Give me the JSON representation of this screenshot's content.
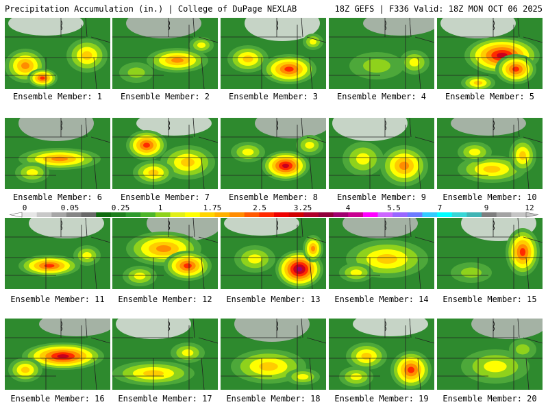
{
  "header": {
    "left": "Precipitation Accumulation (in.) | College of DuPage NEXLAB",
    "right": "18Z GEFS | F336 Valid: 18Z MON OCT 06 2025"
  },
  "caption_prefix": "Ensemble Member: ",
  "members": [
    {
      "label": "Ensemble Member: 1",
      "number": 1
    },
    {
      "label": "Ensemble Member: 2",
      "number": 2
    },
    {
      "label": "Ensemble Member: 3",
      "number": 3
    },
    {
      "label": "Ensemble Member: 4",
      "number": 4
    },
    {
      "label": "Ensemble Member: 5",
      "number": 5
    },
    {
      "label": "Ensemble Member: 6",
      "number": 6
    },
    {
      "label": "Ensemble Member: 7",
      "number": 7
    },
    {
      "label": "Ensemble Member: 8",
      "number": 8
    },
    {
      "label": "Ensemble Member: 9",
      "number": 9
    },
    {
      "label": "Ensemble Member: 10",
      "number": 10
    },
    {
      "label": "Ensemble Member: 11",
      "number": 11
    },
    {
      "label": "Ensemble Member: 12",
      "number": 12
    },
    {
      "label": "Ensemble Member: 13",
      "number": 13
    },
    {
      "label": "Ensemble Member: 14",
      "number": 14
    },
    {
      "label": "Ensemble Member: 15",
      "number": 15
    },
    {
      "label": "Ensemble Member: 16",
      "number": 16
    },
    {
      "label": "Ensemble Member: 17",
      "number": 17
    },
    {
      "label": "Ensemble Member: 18",
      "number": 18
    },
    {
      "label": "Ensemble Member: 19",
      "number": 19
    },
    {
      "label": "Ensemble Member: 20",
      "number": 20
    }
  ],
  "colorbar": {
    "unit": "in.",
    "ticks": [
      "0",
      "0.05",
      "0.25",
      "1",
      "1.75",
      "2.5",
      "3.25",
      "4",
      "5.5",
      "7",
      "9",
      "12"
    ],
    "colors": [
      "#e6e6e6",
      "#c8c8c8",
      "#a6a6a6",
      "#858585",
      "#696969",
      "#0f6b0f",
      "#1d7f1d",
      "#2e9a2e",
      "#4cb52a",
      "#8fd21c",
      "#e1ef17",
      "#ffff00",
      "#ffd400",
      "#ffb000",
      "#ff8c00",
      "#ff5a00",
      "#ff2a00",
      "#ee0000",
      "#d00000",
      "#b0002a",
      "#90003a",
      "#a0006f",
      "#c80090",
      "#ff00ff",
      "#cc66ff",
      "#9966ff",
      "#6c7bff",
      "#33ccff",
      "#00ffff",
      "#38d6d6",
      "#40b4b4",
      "#7e7e7e",
      "#a3a3a3",
      "#c4c4c4"
    ]
  },
  "map_colors": {
    "background": "#2e8a2e",
    "levels": [
      "#e1e1e1",
      "#b9b9b9",
      "#8f8f8f",
      "#1f6f1f",
      "#4da83a",
      "#8fd21c",
      "#ffff00",
      "#ffcc00",
      "#ff8c00",
      "#ff2a00",
      "#c8001e",
      "#a0006f",
      "#cc33cc"
    ]
  }
}
